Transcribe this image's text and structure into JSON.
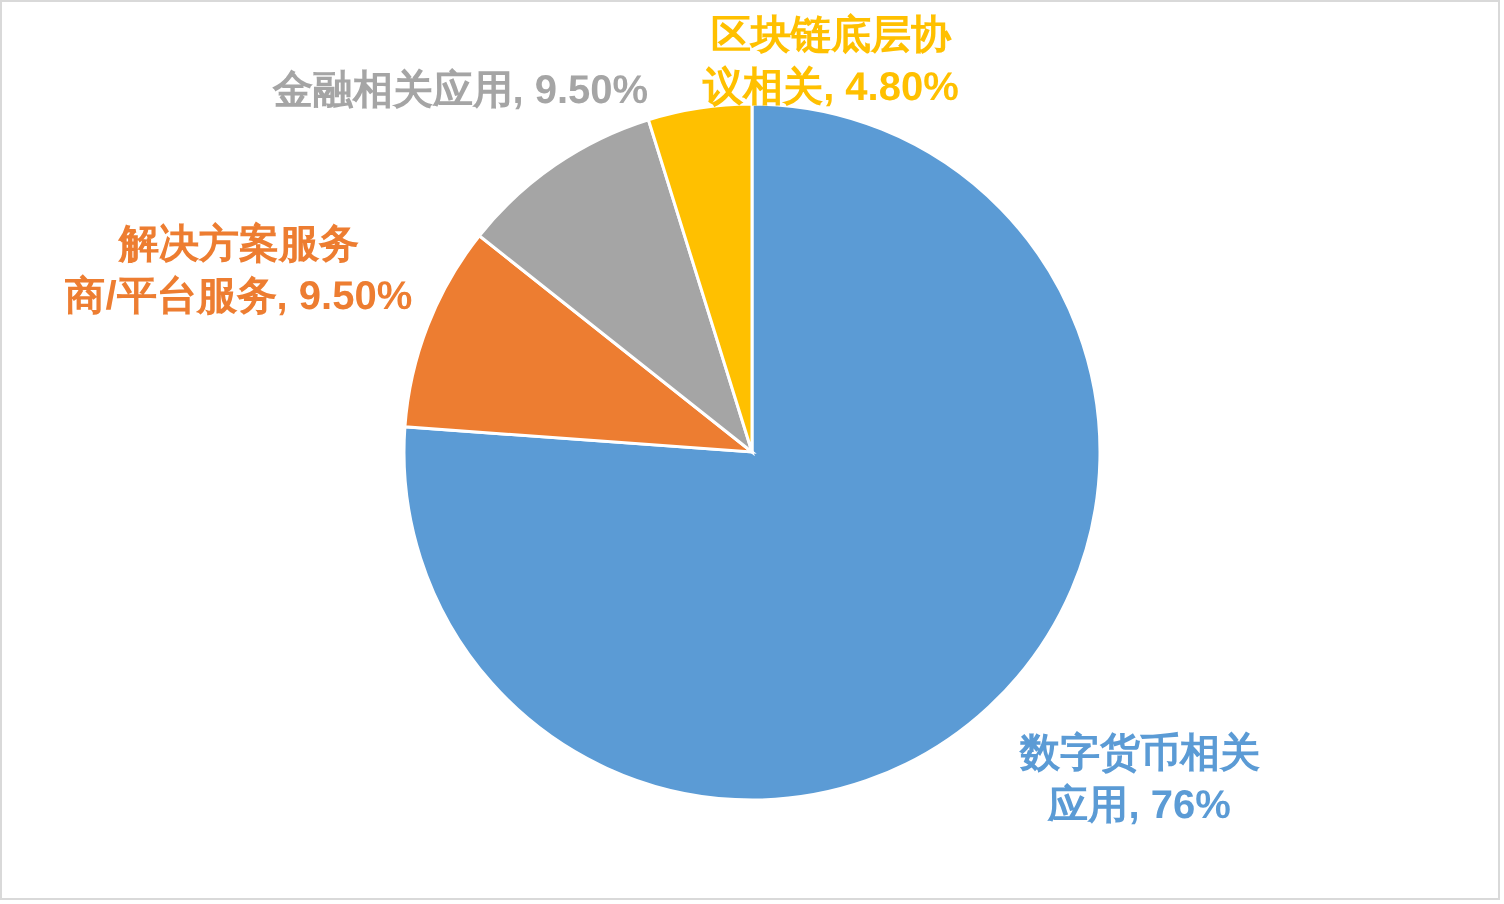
{
  "chart_data": {
    "type": "pie",
    "categories": [
      "数字货币相关应用",
      "解决方案服务商/平台服务",
      "金融相关应用",
      "区块链底层协议相关"
    ],
    "values": [
      76,
      9.5,
      9.5,
      4.8
    ],
    "value_labels": [
      "76%",
      "9.50%",
      "9.50%",
      "4.80%"
    ],
    "colors": [
      "#5b9bd5",
      "#ed7d31",
      "#a5a5a5",
      "#ffc000"
    ]
  }
}
